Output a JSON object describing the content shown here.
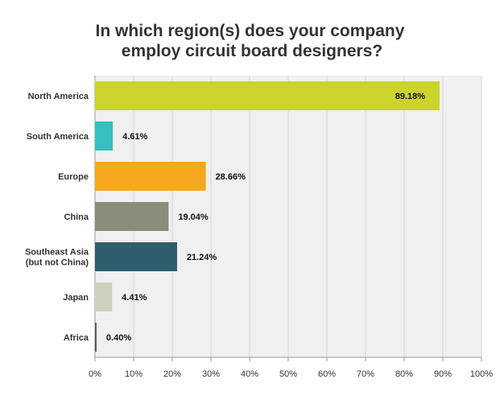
{
  "chart_data": {
    "type": "bar",
    "orientation": "horizontal",
    "title": "In which region(s) does your company employ circuit board designers?",
    "title_lines": [
      "In which region(s) does your company",
      "employ circuit board designers?"
    ],
    "categories": [
      "North America",
      "South America",
      "Europe",
      "China",
      "Southeast Asia (but not China)",
      "Japan",
      "Africa"
    ],
    "category_lines": [
      [
        "North America"
      ],
      [
        "South America"
      ],
      [
        "Europe"
      ],
      [
        "China"
      ],
      [
        "Southeast Asia",
        "(but not China)"
      ],
      [
        "Japan"
      ],
      [
        "Africa"
      ]
    ],
    "values": [
      89.18,
      4.61,
      28.66,
      19.04,
      21.24,
      4.41,
      0.4
    ],
    "value_labels": [
      "89.18%",
      "4.61%",
      "28.66%",
      "19.04%",
      "21.24%",
      "4.41%",
      "0.40%"
    ],
    "colors": [
      "#ccd42c",
      "#35bfbf",
      "#f5a81c",
      "#8c8c7a",
      "#2e5e6e",
      "#d0d0be",
      "#555555"
    ],
    "xlim": [
      0,
      100
    ],
    "x_ticks": [
      "0%",
      "10%",
      "20%",
      "30%",
      "40%",
      "50%",
      "60%",
      "70%",
      "80%",
      "90%",
      "100%"
    ],
    "xlabel": "",
    "ylabel": "",
    "grid": true,
    "background": "#f0f0f0"
  }
}
